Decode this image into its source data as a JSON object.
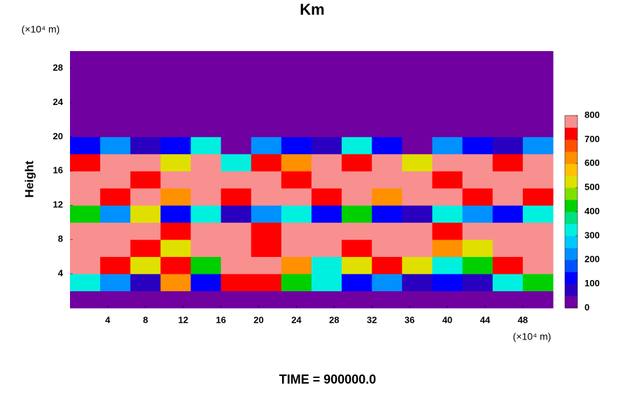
{
  "chart_data": {
    "type": "heatmap",
    "title": "Km",
    "ylabel": "Height",
    "yunit": "(×10⁴ m)",
    "xunit": "(×10⁴ m)",
    "footer": "TIME = 900000.0",
    "xlim": [
      0,
      51.2
    ],
    "ylim": [
      0,
      30
    ],
    "xticks": [
      4,
      8,
      12,
      16,
      20,
      24,
      28,
      32,
      36,
      40,
      44,
      48
    ],
    "yticks": [
      4,
      8,
      12,
      16,
      20,
      24,
      28
    ],
    "clim": [
      0,
      800
    ],
    "cticks": [
      0,
      100,
      200,
      300,
      400,
      500,
      600,
      700,
      800
    ],
    "colors": [
      "#7000a0",
      "#2a00c0",
      "#0000ff",
      "#0050ff",
      "#0090ff",
      "#00c8ff",
      "#00f0e0",
      "#00e080",
      "#00d000",
      "#80e000",
      "#e0e000",
      "#ffc000",
      "#ff9000",
      "#ff5000",
      "#ff0000",
      "#f89090"
    ],
    "z": [
      [
        0,
        0,
        0,
        0,
        0,
        0,
        0,
        0,
        0,
        0,
        0,
        0,
        0,
        0,
        0,
        0
      ],
      [
        300,
        200,
        50,
        600,
        100,
        700,
        700,
        400,
        300,
        100,
        200,
        50,
        100,
        50,
        300,
        400
      ],
      [
        800,
        700,
        500,
        700,
        400,
        800,
        800,
        600,
        300,
        500,
        700,
        500,
        300,
        400,
        700,
        800
      ],
      [
        800,
        800,
        700,
        500,
        800,
        800,
        700,
        800,
        800,
        700,
        800,
        800,
        600,
        500,
        800,
        800
      ],
      [
        800,
        800,
        800,
        700,
        800,
        800,
        700,
        800,
        800,
        800,
        800,
        800,
        700,
        800,
        800,
        800
      ],
      [
        400,
        200,
        500,
        100,
        300,
        50,
        200,
        300,
        100,
        400,
        100,
        50,
        300,
        200,
        100,
        300
      ],
      [
        800,
        700,
        800,
        600,
        800,
        700,
        800,
        800,
        700,
        800,
        600,
        800,
        800,
        700,
        800,
        700
      ],
      [
        800,
        800,
        700,
        800,
        800,
        800,
        800,
        700,
        800,
        800,
        800,
        800,
        700,
        800,
        800,
        800
      ],
      [
        700,
        800,
        800,
        500,
        800,
        300,
        700,
        600,
        800,
        700,
        800,
        500,
        800,
        800,
        700,
        800
      ],
      [
        100,
        200,
        50,
        100,
        300,
        0,
        200,
        100,
        50,
        300,
        100,
        0,
        200,
        100,
        50,
        200
      ],
      [
        0,
        0,
        0,
        0,
        0,
        0,
        0,
        0,
        0,
        0,
        0,
        0,
        0,
        0,
        0,
        0
      ],
      [
        0,
        0,
        0,
        0,
        0,
        0,
        0,
        0,
        0,
        0,
        0,
        0,
        0,
        0,
        0,
        0
      ],
      [
        0,
        0,
        0,
        0,
        0,
        0,
        0,
        0,
        0,
        0,
        0,
        0,
        0,
        0,
        0,
        0
      ],
      [
        0,
        0,
        0,
        0,
        0,
        0,
        0,
        0,
        0,
        0,
        0,
        0,
        0,
        0,
        0,
        0
      ],
      [
        0,
        0,
        0,
        0,
        0,
        0,
        0,
        0,
        0,
        0,
        0,
        0,
        0,
        0,
        0,
        0
      ]
    ]
  }
}
